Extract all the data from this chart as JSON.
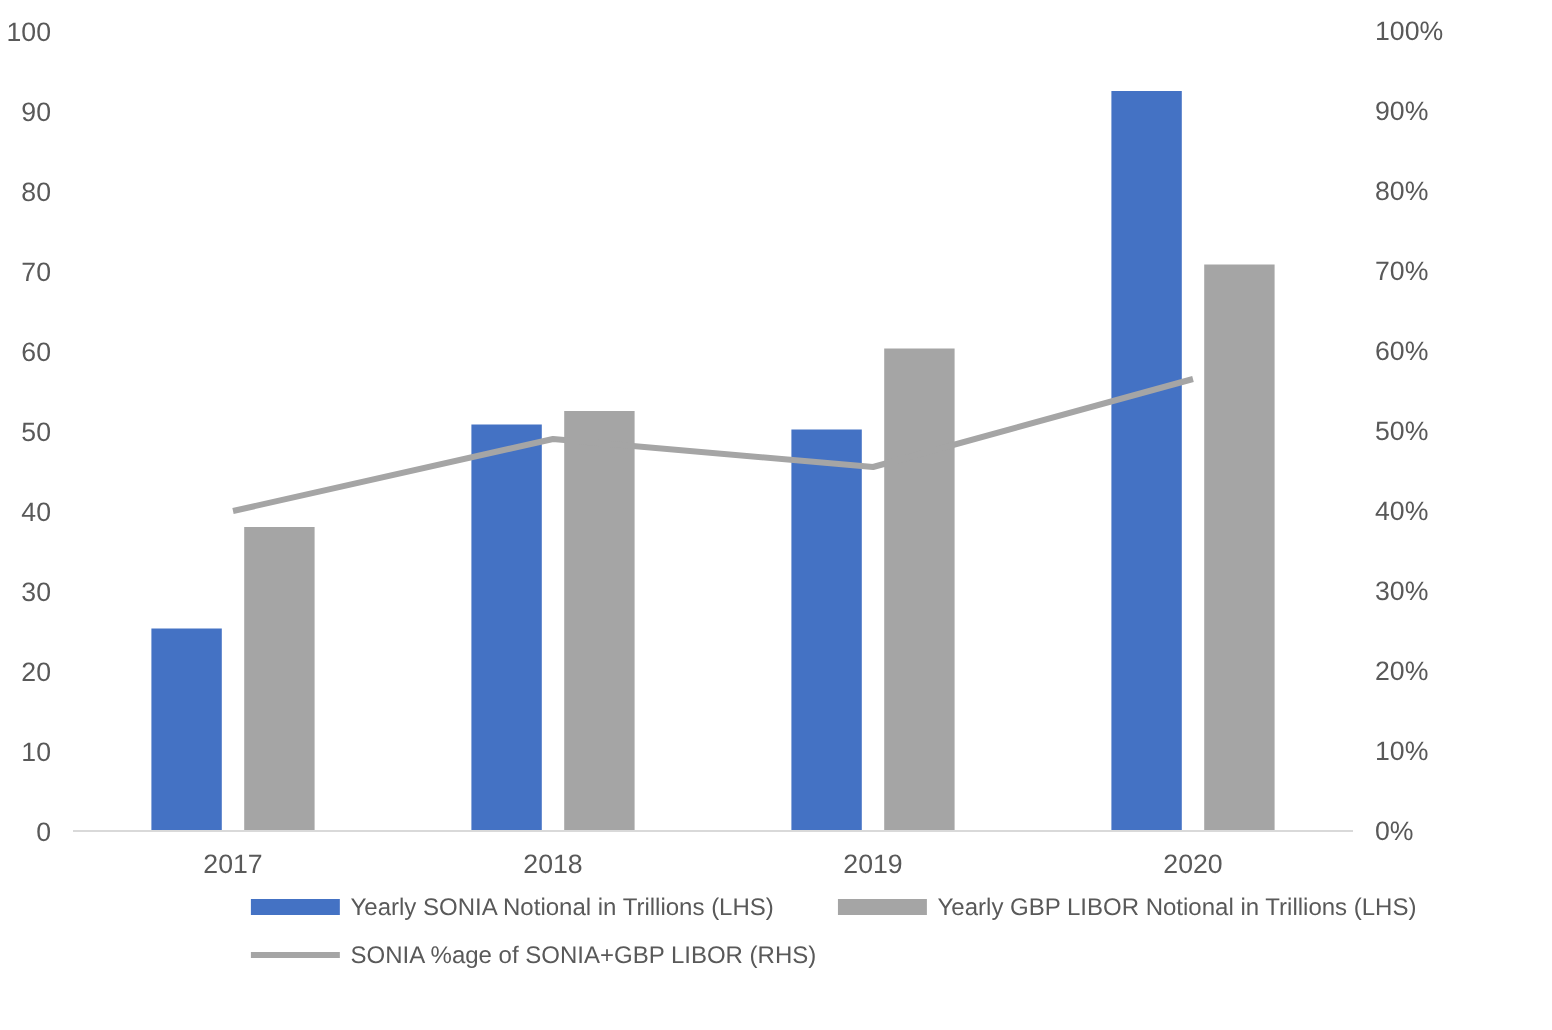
{
  "chart_data": {
    "type": "bar",
    "categories": [
      "2017",
      "2018",
      "2019",
      "2020"
    ],
    "series": [
      {
        "name": "Yearly SONIA Notional in Trillions (LHS)",
        "color": "#4472c4",
        "values": [
          25.3,
          50.8,
          50.2,
          92.5
        ]
      },
      {
        "name": "Yearly GBP LIBOR Notional in Trillions (LHS)",
        "color": "#a5a5a5",
        "values": [
          38,
          52.5,
          60.3,
          70.8
        ]
      },
      {
        "name": "SONIA %age of SONIA+GBP LIBOR (RHS)",
        "color": "#a5a5a5",
        "type": "line",
        "axis": "y2",
        "values": [
          40,
          49,
          45.5,
          56.5
        ]
      }
    ],
    "ylim": [
      0,
      100
    ],
    "yticks": [
      0,
      10,
      20,
      30,
      40,
      50,
      60,
      70,
      80,
      90,
      100
    ],
    "y2lim": [
      0,
      100
    ],
    "y2ticks": [
      {
        "value": 0,
        "label": "0%"
      },
      {
        "value": 10,
        "label": "10%"
      },
      {
        "value": 20,
        "label": "20%"
      },
      {
        "value": 30,
        "label": "30%"
      },
      {
        "value": 40,
        "label": "40%"
      },
      {
        "value": 50,
        "label": "50%"
      },
      {
        "value": 60,
        "label": "60%"
      },
      {
        "value": 70,
        "label": "70%"
      },
      {
        "value": 80,
        "label": "80%"
      },
      {
        "value": 90,
        "label": "90%"
      },
      {
        "value": 100,
        "label": "100%"
      }
    ],
    "grid": false,
    "legend": "bottom",
    "line_style": "solid",
    "marker": "none"
  }
}
